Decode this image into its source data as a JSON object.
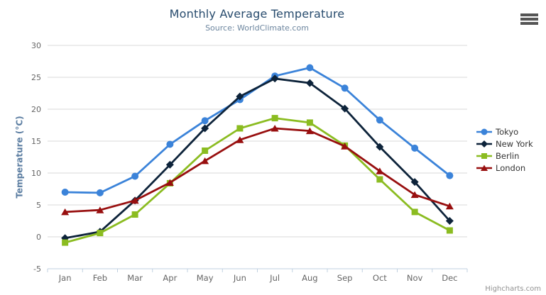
{
  "chart": {
    "title": "Monthly Average Temperature",
    "subtitle": "Source: WorldClimate.com",
    "credits": "Highcharts.com",
    "export_menu_icon": "hamburger-icon",
    "background_color": "#ffffff",
    "gridline_color": "#d8d8d8",
    "axis_line_color": "#c0d0e0",
    "tick_label_color": "#666666",
    "title_color": "#274b6d",
    "subtitle_color": "#6d869f",
    "yaxis_title_color": "#5b7da1",
    "legend_text_color": "#333333"
  },
  "chart_data": {
    "type": "line",
    "title": "Monthly Average Temperature",
    "subtitle": "Source: WorldClimate.com",
    "xlabel": "",
    "ylabel": "Temperature (°C)",
    "categories": [
      "Jan",
      "Feb",
      "Mar",
      "Apr",
      "May",
      "Jun",
      "Jul",
      "Aug",
      "Sep",
      "Oct",
      "Nov",
      "Dec"
    ],
    "ylim": [
      -5,
      30
    ],
    "ytick_step": 5,
    "yticks": [
      -5,
      0,
      5,
      10,
      15,
      20,
      25,
      30
    ],
    "grid": "horizontal-only",
    "legend_position": "right-middle-vertical",
    "series": [
      {
        "name": "Tokyo",
        "color": "#3b83d9",
        "marker": "circle",
        "values": [
          7.0,
          6.9,
          9.5,
          14.5,
          18.2,
          21.5,
          25.2,
          26.5,
          23.3,
          18.3,
          13.9,
          9.6
        ]
      },
      {
        "name": "New York",
        "color": "#0d233a",
        "marker": "diamond",
        "values": [
          -0.2,
          0.8,
          5.7,
          11.3,
          17.0,
          22.0,
          24.8,
          24.1,
          20.1,
          14.1,
          8.6,
          2.5
        ]
      },
      {
        "name": "Berlin",
        "color": "#8bbc21",
        "marker": "square",
        "values": [
          -0.9,
          0.6,
          3.5,
          8.4,
          13.5,
          17.0,
          18.6,
          17.9,
          14.3,
          9.0,
          3.9,
          1.0
        ]
      },
      {
        "name": "London",
        "color": "#980f0f",
        "marker": "triangle",
        "values": [
          3.9,
          4.2,
          5.7,
          8.5,
          11.9,
          15.2,
          17.0,
          16.6,
          14.2,
          10.3,
          6.6,
          4.8
        ]
      }
    ]
  }
}
